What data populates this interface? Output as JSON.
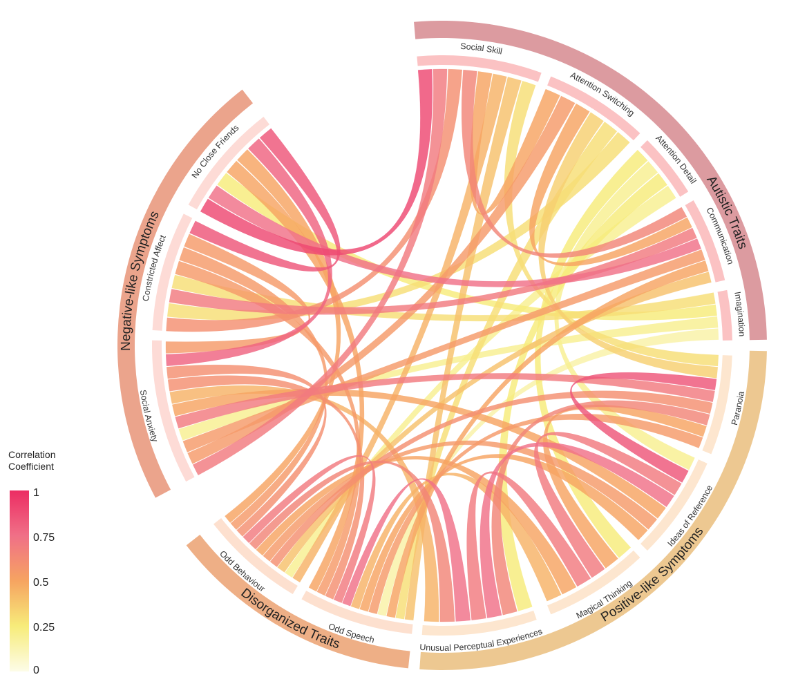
{
  "colors": {
    "legend_stops": [
      "#fdfce8",
      "#f7ec7a",
      "#f6a461",
      "#f07087",
      "#ec2d63"
    ]
  },
  "legend": {
    "title_line1": "Correlation",
    "title_line2": "Coefficient",
    "ticks": [
      "1",
      "0.75",
      "0.5",
      "0.25",
      "0"
    ]
  },
  "groups": [
    {
      "name": "Autistic Traits",
      "color": "#dc9ba0"
    },
    {
      "name": "Positive-like Symptoms",
      "color": "#edc891"
    },
    {
      "name": "Disorganized Traits",
      "color": "#eeaf86"
    },
    {
      "name": "Negative-like Symptoms",
      "color": "#eba48c"
    }
  ],
  "subgroups": [
    {
      "name": "Social Skill",
      "group": 0,
      "color": "#fbc2c3"
    },
    {
      "name": "Attention Switching",
      "group": 0,
      "color": "#fbc2c3"
    },
    {
      "name": "Attention Detail",
      "group": 0,
      "color": "#fbc2c3"
    },
    {
      "name": "Communication",
      "group": 0,
      "color": "#fbc2c3"
    },
    {
      "name": "Imagination",
      "group": 0,
      "color": "#fbc2c3"
    },
    {
      "name": "Paranoia",
      "group": 1,
      "color": "#fde6cf"
    },
    {
      "name": "Ideas of Reference",
      "group": 1,
      "color": "#fde6cf"
    },
    {
      "name": "Magical Thinking",
      "group": 1,
      "color": "#fde6cf"
    },
    {
      "name": "Unusual Perceptual Experiences",
      "group": 1,
      "color": "#fde6cf"
    },
    {
      "name": "Odd Speech",
      "group": 2,
      "color": "#fde0cf"
    },
    {
      "name": "Odd Behaviour",
      "group": 2,
      "color": "#fde0cf"
    },
    {
      "name": "Social Anxiety",
      "group": 3,
      "color": "#fddbd6"
    },
    {
      "name": "Constricted Affect",
      "group": 3,
      "color": "#fddbd6"
    },
    {
      "name": "No Close Friends",
      "group": 3,
      "color": "#fddbd6"
    }
  ],
  "links": [
    {
      "source": "Social Skill",
      "target": "No Close Friends",
      "r": 0.9
    },
    {
      "source": "Social Skill",
      "target": "Social Anxiety",
      "r": 0.7
    },
    {
      "source": "Social Skill",
      "target": "Constricted Affect",
      "r": 0.6
    },
    {
      "source": "Social Skill",
      "target": "Communication",
      "r": 0.65
    },
    {
      "source": "Social Skill",
      "target": "Attention Switching",
      "r": 0.5
    },
    {
      "source": "Social Skill",
      "target": "Odd Behaviour",
      "r": 0.45
    },
    {
      "source": "Social Skill",
      "target": "Odd Speech",
      "r": 0.4
    },
    {
      "source": "Social Skill",
      "target": "Paranoia",
      "r": 0.3
    },
    {
      "source": "Attention Switching",
      "target": "Social Anxiety",
      "r": 0.55
    },
    {
      "source": "Attention Switching",
      "target": "Communication",
      "r": 0.5
    },
    {
      "source": "Attention Switching",
      "target": "Paranoia",
      "r": 0.35
    },
    {
      "source": "Attention Switching",
      "target": "Odd Speech",
      "r": 0.3
    },
    {
      "source": "Attention Switching",
      "target": "Constricted Affect",
      "r": 0.3
    },
    {
      "source": "Attention Detail",
      "target": "Magical Thinking",
      "r": 0.25
    },
    {
      "source": "Attention Detail",
      "target": "Ideas of Reference",
      "r": 0.2
    },
    {
      "source": "Attention Detail",
      "target": "Unusual Perceptual Experiences",
      "r": 0.25
    },
    {
      "source": "Attention Detail",
      "target": "Odd Behaviour",
      "r": 0.2
    },
    {
      "source": "Communication",
      "target": "Constricted Affect",
      "r": 0.7
    },
    {
      "source": "Communication",
      "target": "No Close Friends",
      "r": 0.75
    },
    {
      "source": "Communication",
      "target": "Social Anxiety",
      "r": 0.55
    },
    {
      "source": "Communication",
      "target": "Odd Speech",
      "r": 0.5
    },
    {
      "source": "Communication",
      "target": "Odd Behaviour",
      "r": 0.4
    },
    {
      "source": "Imagination",
      "target": "Constricted Affect",
      "r": 0.3
    },
    {
      "source": "Imagination",
      "target": "No Close Friends",
      "r": 0.25
    },
    {
      "source": "Imagination",
      "target": "Social Anxiety",
      "r": 0.2
    },
    {
      "source": "Imagination",
      "target": "Odd Speech",
      "r": 0.15
    },
    {
      "source": "Paranoia",
      "target": "Ideas of Reference",
      "r": 0.85
    },
    {
      "source": "Paranoia",
      "target": "Social Anxiety",
      "r": 0.7
    },
    {
      "source": "Paranoia",
      "target": "Odd Behaviour",
      "r": 0.6
    },
    {
      "source": "Paranoia",
      "target": "Unusual Perceptual Experiences",
      "r": 0.65
    },
    {
      "source": "Paranoia",
      "target": "Magical Thinking",
      "r": 0.5
    },
    {
      "source": "Paranoia",
      "target": "Odd Speech",
      "r": 0.55
    },
    {
      "source": "Ideas of Reference",
      "target": "Magical Thinking",
      "r": 0.7
    },
    {
      "source": "Ideas of Reference",
      "target": "Unusual Perceptual Experiences",
      "r": 0.75
    },
    {
      "source": "Ideas of Reference",
      "target": "Social Anxiety",
      "r": 0.5
    },
    {
      "source": "Ideas of Reference",
      "target": "Odd Behaviour",
      "r": 0.55
    },
    {
      "source": "Ideas of Reference",
      "target": "Odd Speech",
      "r": 0.5
    },
    {
      "source": "Magical Thinking",
      "target": "Unusual Perceptual Experiences",
      "r": 0.7
    },
    {
      "source": "Magical Thinking",
      "target": "Odd Behaviour",
      "r": 0.5
    },
    {
      "source": "Magical Thinking",
      "target": "Odd Speech",
      "r": 0.45
    },
    {
      "source": "Unusual Perceptual Experiences",
      "target": "Odd Speech",
      "r": 0.75
    },
    {
      "source": "Unusual Perceptual Experiences",
      "target": "Odd Behaviour",
      "r": 0.65
    },
    {
      "source": "Unusual Perceptual Experiences",
      "target": "Social Anxiety",
      "r": 0.45
    },
    {
      "source": "Odd Speech",
      "target": "Odd Behaviour",
      "r": 0.7
    },
    {
      "source": "Odd Speech",
      "target": "Social Anxiety",
      "r": 0.6
    },
    {
      "source": "Odd Speech",
      "target": "Constricted Affect",
      "r": 0.55
    },
    {
      "source": "Odd Speech",
      "target": "No Close Friends",
      "r": 0.5
    },
    {
      "source": "Odd Behaviour",
      "target": "Social Anxiety",
      "r": 0.6
    },
    {
      "source": "Odd Behaviour",
      "target": "Constricted Affect",
      "r": 0.55
    },
    {
      "source": "Odd Behaviour",
      "target": "No Close Friends",
      "r": 0.5
    },
    {
      "source": "Social Anxiety",
      "target": "No Close Friends",
      "r": 0.8
    },
    {
      "source": "Social Anxiety",
      "target": "Constricted Affect",
      "r": 0.55
    },
    {
      "source": "Constricted Affect",
      "target": "No Close Friends",
      "r": 0.85
    }
  ]
}
